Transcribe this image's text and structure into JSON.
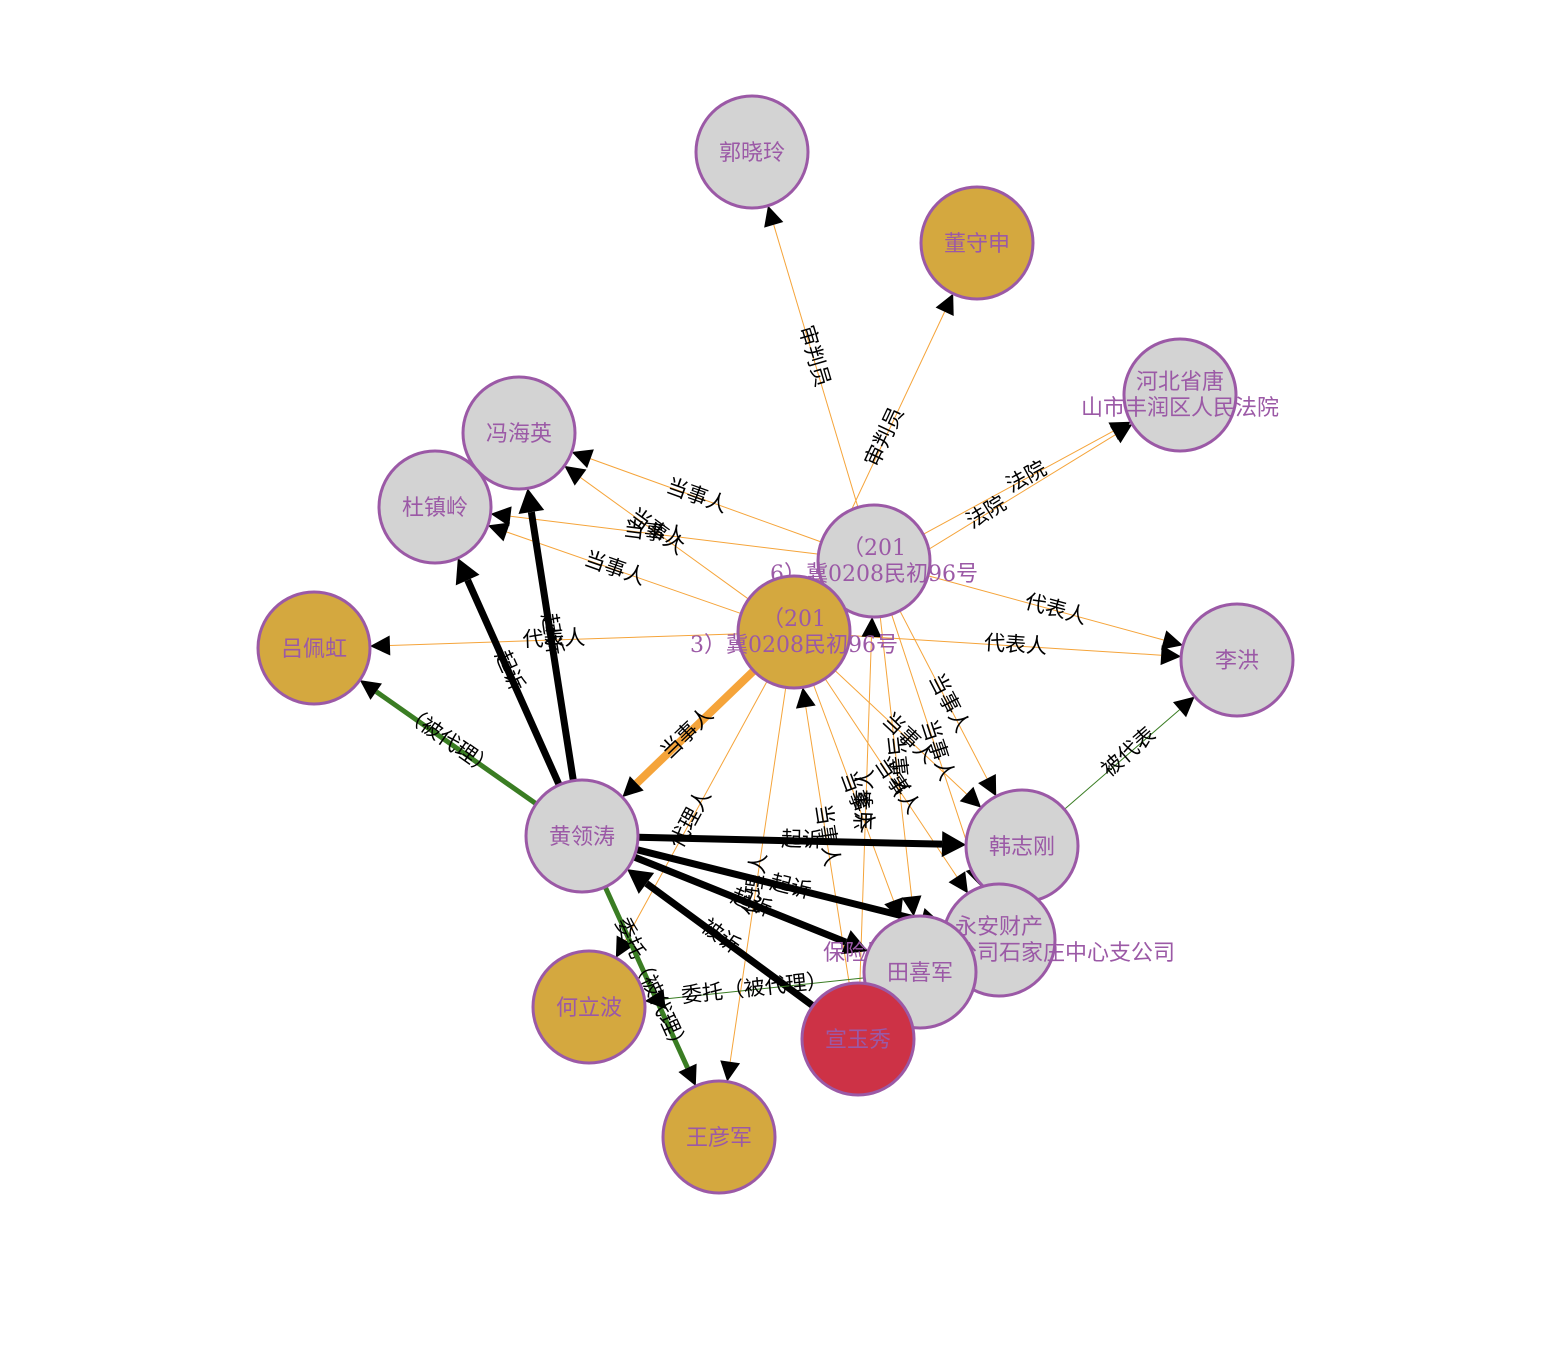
{
  "colors": {
    "node_gray": "#d3d3d3",
    "node_gold": "#d4a83f",
    "node_red": "#cd3246",
    "node_stroke": "#9b59a6",
    "label_purple": "#9b59a6",
    "edge_orange": "#f5a43a",
    "edge_black": "#000000",
    "edge_green": "#3a7d23"
  },
  "nodes": [
    {
      "id": "guo",
      "lines": [
        "郭晓玲"
      ],
      "color": "gray"
    },
    {
      "id": "dong",
      "lines": [
        "董守申"
      ],
      "color": "gold"
    },
    {
      "id": "court",
      "lines": [
        "河北省唐",
        "山市丰润区人民法院"
      ],
      "color": "gray"
    },
    {
      "id": "feng",
      "lines": [
        "冯海英"
      ],
      "color": "gray"
    },
    {
      "id": "du",
      "lines": [
        "杜镇岭"
      ],
      "color": "gray"
    },
    {
      "id": "case16",
      "lines": [
        "（201",
        "6）冀0208民初96号"
      ],
      "color": "gray"
    },
    {
      "id": "case13",
      "lines": [
        "（201",
        "3）冀0208民初96号"
      ],
      "color": "gold"
    },
    {
      "id": "lv",
      "lines": [
        "吕佩虹"
      ],
      "color": "gold"
    },
    {
      "id": "li",
      "lines": [
        "李洪"
      ],
      "color": "gray"
    },
    {
      "id": "huang",
      "lines": [
        "黄领涛"
      ],
      "color": "gray"
    },
    {
      "id": "han",
      "lines": [
        "韩志刚"
      ],
      "color": "gray"
    },
    {
      "id": "yongan",
      "lines": [
        "永安财产",
        "保险股份有限公司石家庄中心支公司"
      ],
      "color": "gray"
    },
    {
      "id": "tian",
      "lines": [
        "田喜军"
      ],
      "color": "gray"
    },
    {
      "id": "he",
      "lines": [
        "何立波"
      ],
      "color": "gold"
    },
    {
      "id": "xuan",
      "lines": [
        "宣玉秀"
      ],
      "color": "red"
    },
    {
      "id": "wang",
      "lines": [
        "王彦军"
      ],
      "color": "gold"
    }
  ],
  "edges": [
    {
      "from": "case16",
      "to": "guo",
      "label": "审判员",
      "color": "orange"
    },
    {
      "from": "case13",
      "to": "dong",
      "label": "审判员",
      "color": "orange"
    },
    {
      "from": "case16",
      "to": "court",
      "label": "法院",
      "color": "orange"
    },
    {
      "from": "case13",
      "to": "court",
      "label": "法院",
      "color": "orange"
    },
    {
      "from": "case16",
      "to": "feng",
      "label": "当事人",
      "color": "orange"
    },
    {
      "from": "case13",
      "to": "feng",
      "label": "当事人",
      "color": "orange"
    },
    {
      "from": "case16",
      "to": "du",
      "label": "当事人",
      "color": "orange"
    },
    {
      "from": "case13",
      "to": "du",
      "label": "当事人",
      "color": "orange"
    },
    {
      "from": "case13",
      "to": "lv",
      "label": "代表人",
      "color": "orange"
    },
    {
      "from": "case16",
      "to": "li",
      "label": "代表人",
      "color": "orange"
    },
    {
      "from": "case13",
      "to": "li",
      "label": "代表人",
      "color": "orange"
    },
    {
      "from": "case13",
      "to": "huang",
      "label": "当事人",
      "color": "orange",
      "thick": true
    },
    {
      "from": "case16",
      "to": "han",
      "label": "当事人",
      "color": "orange"
    },
    {
      "from": "case13",
      "to": "han",
      "label": "当事人",
      "color": "orange"
    },
    {
      "from": "case16",
      "to": "yongan",
      "label": "当事人",
      "color": "orange"
    },
    {
      "from": "case13",
      "to": "yongan",
      "label": "当事人",
      "color": "orange"
    },
    {
      "from": "case16",
      "to": "tian",
      "label": "当事人",
      "color": "orange"
    },
    {
      "from": "case13",
      "to": "tian",
      "label": "当事人",
      "color": "orange"
    },
    {
      "from": "case13",
      "to": "he",
      "label": "代理人",
      "color": "orange"
    },
    {
      "from": "case13",
      "to": "wang",
      "label": "代理人",
      "color": "orange"
    },
    {
      "from": "xuan",
      "to": "case13",
      "label": "当事人",
      "color": "orange"
    },
    {
      "from": "xuan",
      "to": "case16",
      "label": "当事人",
      "color": "orange"
    },
    {
      "from": "huang",
      "to": "feng",
      "label": "起诉",
      "color": "black"
    },
    {
      "from": "huang",
      "to": "du",
      "label": "起诉",
      "color": "black"
    },
    {
      "from": "huang",
      "to": "han",
      "label": "起诉",
      "color": "black"
    },
    {
      "from": "huang",
      "to": "yongan",
      "label": "起诉",
      "color": "black"
    },
    {
      "from": "huang",
      "to": "tian",
      "label": "起诉",
      "color": "black"
    },
    {
      "from": "xuan",
      "to": "huang",
      "label": "被诉",
      "color": "black"
    },
    {
      "from": "huang",
      "to": "lv",
      "label": "（被代理）",
      "color": "green",
      "thick": true
    },
    {
      "from": "huang",
      "to": "wang",
      "label": "委托（被代理）",
      "color": "green",
      "thick": true
    },
    {
      "from": "tian",
      "to": "he",
      "label": "委托（被代理）",
      "color": "green"
    },
    {
      "from": "han",
      "to": "li",
      "label": "被代表",
      "color": "green"
    }
  ]
}
